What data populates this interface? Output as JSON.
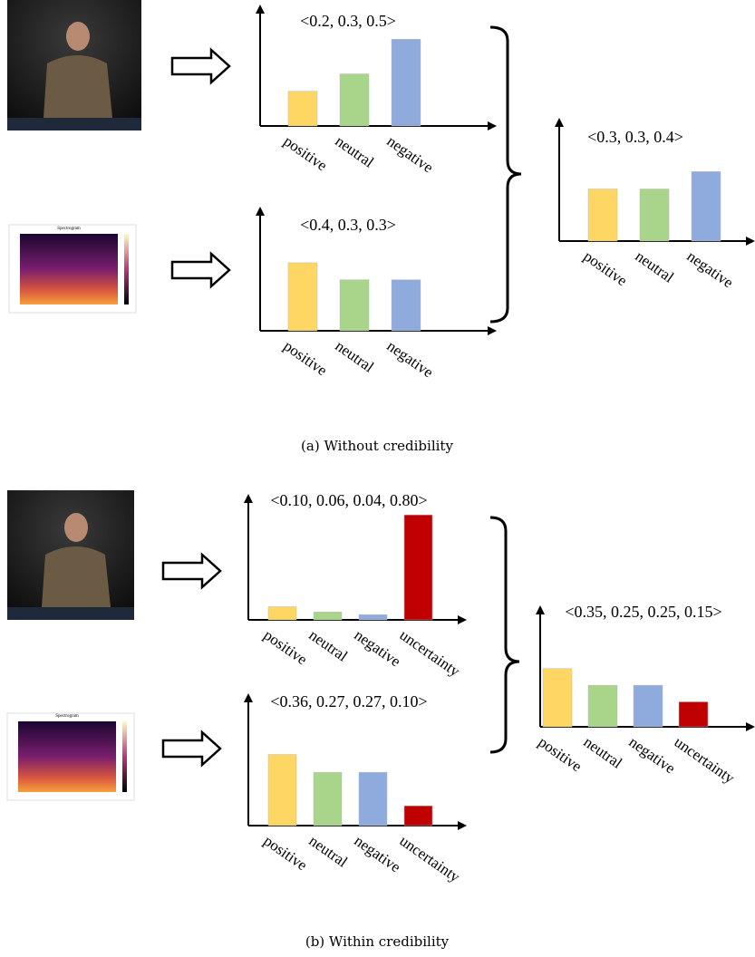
{
  "chart_data": [
    {
      "type": "bar",
      "title": "<0.2, 0.3, 0.5>",
      "categories": [
        "positive",
        "neutral",
        "negative"
      ],
      "values": [
        0.2,
        0.3,
        0.5
      ],
      "colors": [
        "#fdd663",
        "#a8d58a",
        "#8faadc"
      ],
      "ylim": [
        0,
        0.7
      ]
    },
    {
      "type": "bar",
      "title": "<0.4, 0.3, 0.3>",
      "categories": [
        "positive",
        "neutral",
        "negative"
      ],
      "values": [
        0.4,
        0.3,
        0.3
      ],
      "colors": [
        "#fdd663",
        "#a8d58a",
        "#8faadc"
      ],
      "ylim": [
        0,
        0.73
      ]
    },
    {
      "type": "bar",
      "title": "<0.3, 0.3, 0.4>",
      "categories": [
        "positive",
        "neutral",
        "negative"
      ],
      "values": [
        0.3,
        0.3,
        0.4
      ],
      "colors": [
        "#fdd663",
        "#a8d58a",
        "#8faadc"
      ],
      "ylim": [
        0,
        0.71
      ]
    },
    {
      "type": "bar",
      "title": "<0.10, 0.06, 0.04, 0.80>",
      "categories": [
        "positive",
        "neutral",
        "negative",
        "uncertainty"
      ],
      "values": [
        0.1,
        0.06,
        0.04,
        0.8
      ],
      "colors": [
        "#fdd663",
        "#a8d58a",
        "#8faadc",
        "#c00000"
      ],
      "ylim": [
        0,
        0.96
      ]
    },
    {
      "type": "bar",
      "title": "<0.36, 0.27, 0.27, 0.10>",
      "categories": [
        "positive",
        "neutral",
        "negative",
        "uncertainty"
      ],
      "values": [
        0.36,
        0.27,
        0.27,
        0.1
      ],
      "colors": [
        "#fdd663",
        "#a8d58a",
        "#8faadc",
        "#c00000"
      ],
      "ylim": [
        0,
        0.67
      ]
    },
    {
      "type": "bar",
      "title": "<0.35, 0.25, 0.25, 0.15>",
      "categories": [
        "positive",
        "neutral",
        "negative",
        "uncertainty"
      ],
      "values": [
        0.35,
        0.25,
        0.25,
        0.15
      ],
      "colors": [
        "#fdd663",
        "#a8d58a",
        "#8faadc",
        "#c00000"
      ],
      "ylim": [
        0,
        0.73
      ]
    }
  ],
  "captions": [
    "(a) Without credibility",
    "(b) Within credibility"
  ],
  "spectrogram_title": "Spectrogram"
}
